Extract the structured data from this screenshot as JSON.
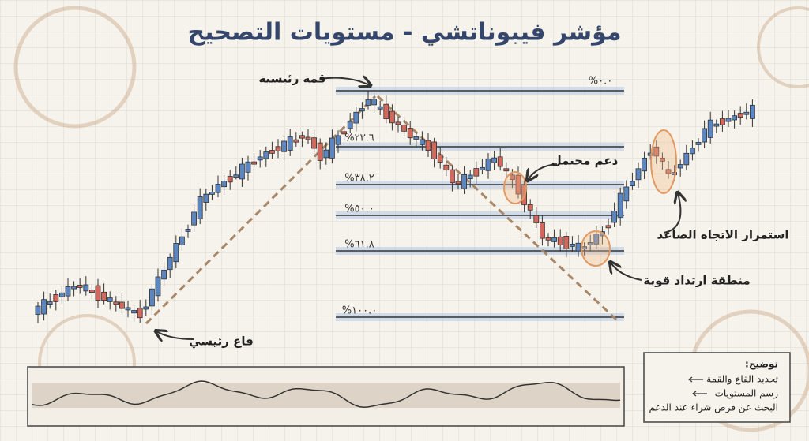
{
  "title": "مؤشر فيبوناتشي - مستويات التصحيح",
  "levels": [
    "%٠.٠",
    "%٢٣.٦",
    "%٣٨.٢",
    "%٥٠.٠",
    "%٦١.٨",
    "%١٠٠.٠"
  ],
  "annotations": {
    "peak": "قمة رئيسية",
    "trough": "قاع رئيسي",
    "support": "دعم محتمل",
    "continuation": "استمرار الاتجاه الصاعد",
    "bounce": "منطقة ارتداد قوية"
  },
  "legend": {
    "title": "توضيح:",
    "items": [
      "تحديد القاع والقمة",
      "رسم المستويات",
      "البحث عن فرص شراء عند الدعم"
    ]
  }
}
